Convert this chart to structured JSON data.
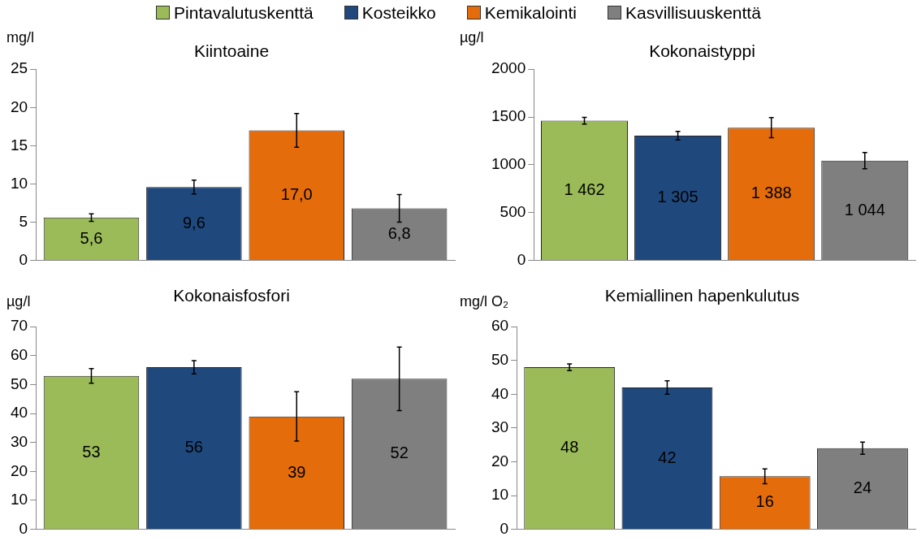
{
  "chart_data": [
    {
      "type": "bar",
      "title": "Kiintoaine",
      "ylabel": "mg/l",
      "categories": [
        null
      ],
      "ylim": [
        0,
        25
      ],
      "yticks": [
        0,
        5,
        10,
        15,
        20,
        25
      ],
      "legend": "top",
      "tick_labels": "y",
      "grid": false,
      "series": [
        {
          "name": "Pintavalutuskenttä",
          "color": "#9bbb59",
          "values": [
            5.6
          ],
          "errors": [
            0.5
          ],
          "value_labels": [
            "5,6"
          ]
        },
        {
          "name": "Kosteikko",
          "color": "#1f497d",
          "values": [
            9.6
          ],
          "errors": [
            0.9
          ],
          "value_labels": [
            "9,6"
          ]
        },
        {
          "name": "Kemikalointi",
          "color": "#e46c0a",
          "values": [
            17.0
          ],
          "errors": [
            2.2
          ],
          "value_labels": [
            "17,0"
          ]
        },
        {
          "name": "Kasvillisuuskenttä",
          "color": "#7f7f7f",
          "values": [
            6.8
          ],
          "errors": [
            1.8
          ],
          "value_labels": [
            "6,8"
          ]
        }
      ]
    },
    {
      "type": "bar",
      "title": "Kokonaistyppi",
      "ylabel": "µg/l",
      "categories": [
        null
      ],
      "ylim": [
        0,
        2000
      ],
      "yticks": [
        0,
        500,
        1000,
        1500,
        2000
      ],
      "legend": false,
      "tick_labels": "y",
      "grid": false,
      "series": [
        {
          "color": "#9bbb59",
          "values": [
            1462
          ],
          "errors": [
            35
          ],
          "value_labels": [
            "1 462"
          ]
        },
        {
          "color": "#1f497d",
          "values": [
            1305
          ],
          "errors": [
            45
          ],
          "value_labels": [
            "1 305"
          ]
        },
        {
          "color": "#e46c0a",
          "values": [
            1388
          ],
          "errors": [
            105
          ],
          "value_labels": [
            "1 388"
          ]
        },
        {
          "color": "#7f7f7f",
          "values": [
            1044
          ],
          "errors": [
            85
          ],
          "value_labels": [
            "1 044"
          ]
        }
      ]
    },
    {
      "type": "bar",
      "title": "Kokonaisfosfori",
      "ylabel": "µg/l",
      "categories": [
        null
      ],
      "ylim": [
        0,
        70
      ],
      "yticks": [
        0,
        10,
        20,
        30,
        40,
        50,
        60,
        70
      ],
      "legend": false,
      "tick_labels": "y",
      "grid": false,
      "series": [
        {
          "color": "#9bbb59",
          "values": [
            53
          ],
          "errors": [
            2.5
          ],
          "value_labels": [
            "53"
          ]
        },
        {
          "color": "#1f497d",
          "values": [
            56
          ],
          "errors": [
            2.3
          ],
          "value_labels": [
            "56"
          ]
        },
        {
          "color": "#e46c0a",
          "values": [
            39
          ],
          "errors": [
            8.5
          ],
          "value_labels": [
            "39"
          ]
        },
        {
          "color": "#7f7f7f",
          "values": [
            52
          ],
          "errors": [
            11
          ],
          "value_labels": [
            "52"
          ]
        }
      ]
    },
    {
      "type": "bar",
      "title": "Kemiallinen hapenkulutus",
      "ylabel": "mg/l O₂",
      "categories": [
        null
      ],
      "ylim": [
        0,
        60
      ],
      "yticks": [
        0,
        10,
        20,
        30,
        40,
        50,
        60
      ],
      "legend": false,
      "tick_labels": "y",
      "grid": false,
      "series": [
        {
          "color": "#9bbb59",
          "values": [
            48
          ],
          "errors": [
            1
          ],
          "value_labels": [
            "48"
          ]
        },
        {
          "color": "#1f497d",
          "values": [
            42
          ],
          "errors": [
            2
          ],
          "value_labels": [
            "42"
          ]
        },
        {
          "color": "#e46c0a",
          "values": [
            15.7
          ],
          "errors": [
            2.2
          ],
          "value_labels": [
            "16"
          ]
        },
        {
          "color": "#7f7f7f",
          "values": [
            24
          ],
          "errors": [
            1.8
          ],
          "value_labels": [
            "24"
          ]
        }
      ]
    }
  ]
}
